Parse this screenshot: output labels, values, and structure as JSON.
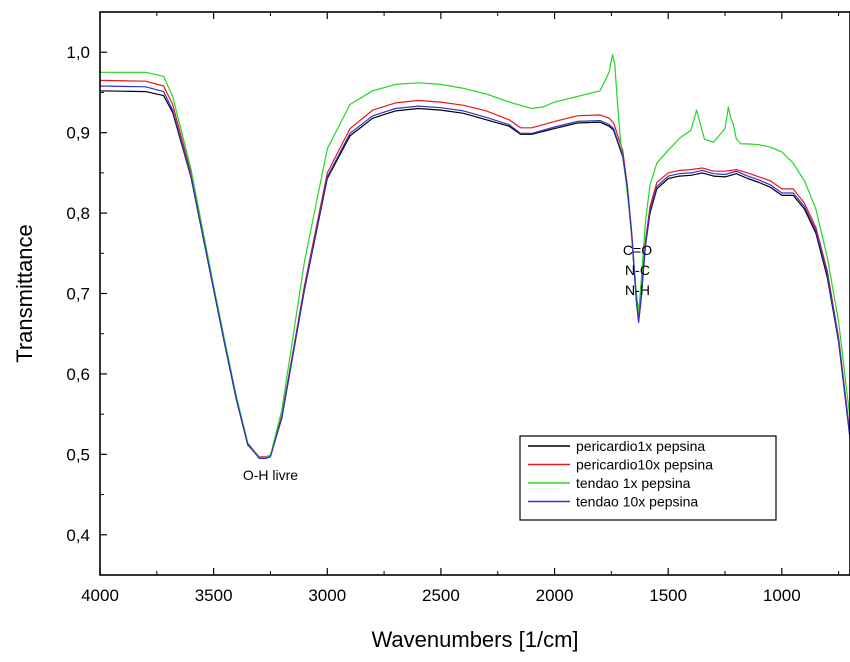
{
  "chart_data": {
    "type": "line",
    "xlabel": "Wavenumbers [1/cm]",
    "ylabel": "Transmittance",
    "xlim": [
      4000,
      700
    ],
    "ylim": [
      0.35,
      1.05
    ],
    "x_ticks": [
      4000,
      3500,
      3000,
      2500,
      2000,
      1500,
      1000
    ],
    "x_tick_labels": [
      "4000",
      "3500",
      "3000",
      "2500",
      "2000",
      "1500",
      "1000"
    ],
    "y_ticks": [
      0.4,
      0.5,
      0.6,
      0.7,
      0.8,
      0.9,
      1.0
    ],
    "y_tick_labels": [
      "0,4",
      "0,5",
      "0,6",
      "0,7",
      "0,8",
      "0,9",
      "1,0"
    ],
    "grid": false,
    "legend_position": "bottom-right",
    "annotations": [
      {
        "text": "O-H livre",
        "x": 3250,
        "y": 0.468
      },
      {
        "text": "C=O",
        "x": 1635,
        "y": 0.748
      },
      {
        "text": "N-C",
        "x": 1635,
        "y": 0.723
      },
      {
        "text": "N-H",
        "x": 1635,
        "y": 0.698
      }
    ],
    "series": [
      {
        "name": "pericardio1x pepsina",
        "color": "#000000",
        "x": [
          4000,
          3800,
          3720,
          3680,
          3600,
          3500,
          3450,
          3400,
          3350,
          3300,
          3270,
          3250,
          3200,
          3100,
          3000,
          2900,
          2800,
          2700,
          2600,
          2500,
          2400,
          2300,
          2200,
          2150,
          2100,
          2000,
          1900,
          1800,
          1760,
          1740,
          1700,
          1680,
          1660,
          1640,
          1630,
          1620,
          1600,
          1580,
          1550,
          1500,
          1450,
          1400,
          1350,
          1300,
          1250,
          1200,
          1150,
          1100,
          1050,
          1000,
          950,
          900,
          850,
          800,
          750,
          700
        ],
        "y": [
          0.952,
          0.951,
          0.946,
          0.925,
          0.845,
          0.705,
          0.635,
          0.568,
          0.512,
          0.496,
          0.496,
          0.498,
          0.545,
          0.705,
          0.843,
          0.896,
          0.918,
          0.927,
          0.93,
          0.928,
          0.924,
          0.916,
          0.908,
          0.898,
          0.898,
          0.905,
          0.912,
          0.913,
          0.908,
          0.903,
          0.87,
          0.83,
          0.77,
          0.69,
          0.665,
          0.69,
          0.76,
          0.8,
          0.83,
          0.843,
          0.846,
          0.847,
          0.85,
          0.846,
          0.845,
          0.849,
          0.843,
          0.838,
          0.832,
          0.822,
          0.822,
          0.805,
          0.775,
          0.72,
          0.64,
          0.52
        ]
      },
      {
        "name": "pericardio10x pepsina",
        "color": "#e8191c",
        "x": [
          4000,
          3800,
          3720,
          3680,
          3600,
          3500,
          3450,
          3400,
          3350,
          3300,
          3270,
          3250,
          3200,
          3100,
          3000,
          2900,
          2800,
          2700,
          2600,
          2500,
          2400,
          2300,
          2200,
          2150,
          2100,
          2000,
          1900,
          1800,
          1760,
          1740,
          1700,
          1680,
          1660,
          1640,
          1630,
          1620,
          1600,
          1580,
          1550,
          1500,
          1450,
          1400,
          1350,
          1300,
          1250,
          1200,
          1150,
          1100,
          1050,
          1000,
          950,
          900,
          850,
          800,
          750,
          700
        ],
        "y": [
          0.965,
          0.964,
          0.958,
          0.935,
          0.85,
          0.708,
          0.638,
          0.57,
          0.514,
          0.497,
          0.497,
          0.499,
          0.548,
          0.71,
          0.85,
          0.905,
          0.928,
          0.937,
          0.94,
          0.938,
          0.934,
          0.927,
          0.916,
          0.906,
          0.906,
          0.914,
          0.921,
          0.922,
          0.918,
          0.912,
          0.878,
          0.835,
          0.775,
          0.695,
          0.668,
          0.695,
          0.766,
          0.808,
          0.838,
          0.85,
          0.853,
          0.854,
          0.856,
          0.852,
          0.852,
          0.854,
          0.85,
          0.845,
          0.84,
          0.83,
          0.83,
          0.812,
          0.782,
          0.728,
          0.645,
          0.525
        ]
      },
      {
        "name": "tendao 1x pepsina",
        "color": "#22d822",
        "x": [
          4000,
          3800,
          3720,
          3680,
          3600,
          3500,
          3450,
          3400,
          3350,
          3300,
          3270,
          3250,
          3200,
          3100,
          3000,
          2900,
          2800,
          2700,
          2600,
          2500,
          2400,
          2300,
          2200,
          2100,
          2050,
          2000,
          1900,
          1800,
          1760,
          1745,
          1735,
          1725,
          1710,
          1690,
          1670,
          1650,
          1640,
          1630,
          1620,
          1600,
          1580,
          1550,
          1500,
          1450,
          1400,
          1375,
          1360,
          1340,
          1300,
          1250,
          1235,
          1225,
          1215,
          1200,
          1180,
          1150,
          1100,
          1050,
          1000,
          950,
          900,
          850,
          800,
          750,
          700
        ],
        "y": [
          0.975,
          0.975,
          0.97,
          0.945,
          0.855,
          0.71,
          0.64,
          0.572,
          0.514,
          0.496,
          0.496,
          0.499,
          0.555,
          0.74,
          0.88,
          0.935,
          0.952,
          0.96,
          0.962,
          0.96,
          0.955,
          0.948,
          0.938,
          0.93,
          0.932,
          0.938,
          0.945,
          0.952,
          0.975,
          0.997,
          0.985,
          0.945,
          0.89,
          0.85,
          0.8,
          0.735,
          0.7,
          0.678,
          0.71,
          0.79,
          0.835,
          0.862,
          0.878,
          0.893,
          0.903,
          0.928,
          0.912,
          0.892,
          0.888,
          0.905,
          0.932,
          0.918,
          0.912,
          0.892,
          0.886,
          0.886,
          0.885,
          0.882,
          0.876,
          0.862,
          0.84,
          0.805,
          0.745,
          0.665,
          0.545
        ]
      },
      {
        "name": "tendao 10x pepsina",
        "color": "#3333cc",
        "x": [
          4000,
          3800,
          3720,
          3680,
          3600,
          3500,
          3450,
          3400,
          3350,
          3300,
          3270,
          3250,
          3200,
          3100,
          3000,
          2900,
          2800,
          2700,
          2600,
          2500,
          2400,
          2300,
          2200,
          2150,
          2100,
          2000,
          1900,
          1800,
          1760,
          1740,
          1700,
          1680,
          1660,
          1640,
          1630,
          1620,
          1600,
          1580,
          1550,
          1500,
          1450,
          1400,
          1350,
          1300,
          1250,
          1200,
          1150,
          1100,
          1050,
          1000,
          950,
          900,
          850,
          800,
          750,
          700
        ],
        "y": [
          0.958,
          0.957,
          0.951,
          0.928,
          0.846,
          0.706,
          0.636,
          0.569,
          0.513,
          0.495,
          0.495,
          0.497,
          0.546,
          0.707,
          0.845,
          0.899,
          0.921,
          0.93,
          0.933,
          0.931,
          0.927,
          0.919,
          0.91,
          0.899,
          0.899,
          0.907,
          0.914,
          0.915,
          0.91,
          0.905,
          0.872,
          0.832,
          0.772,
          0.692,
          0.664,
          0.692,
          0.762,
          0.803,
          0.833,
          0.846,
          0.849,
          0.85,
          0.853,
          0.849,
          0.848,
          0.852,
          0.846,
          0.841,
          0.835,
          0.825,
          0.825,
          0.808,
          0.778,
          0.724,
          0.642,
          0.522
        ]
      }
    ]
  }
}
